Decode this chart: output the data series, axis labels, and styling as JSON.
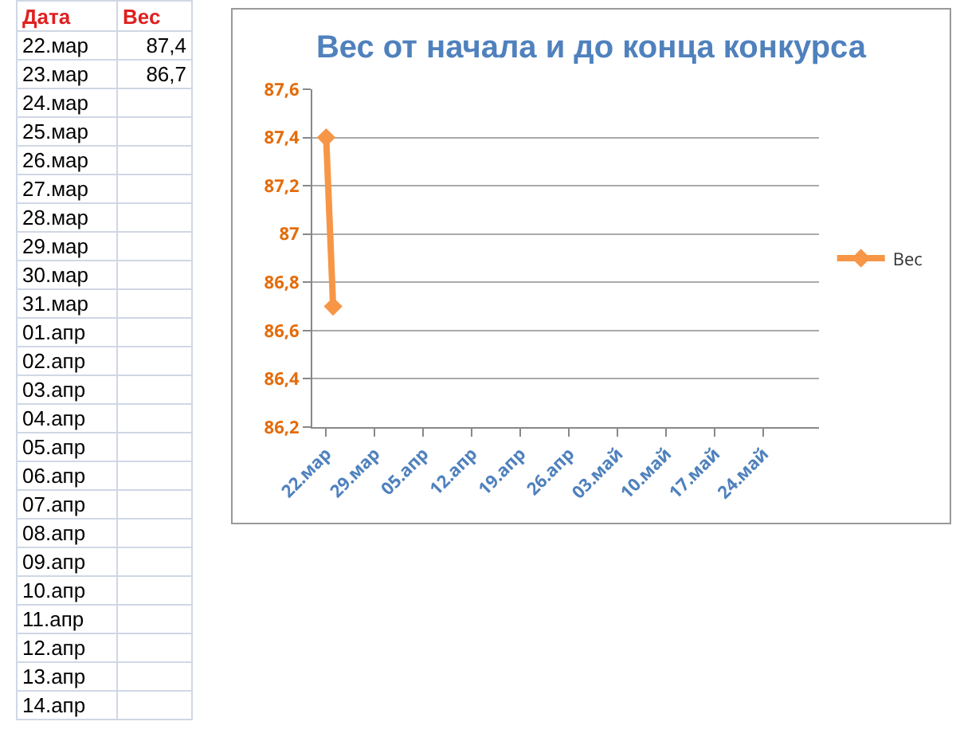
{
  "chart_data": {
    "type": "line",
    "title": "Вес от начала и до конца конкурса",
    "annotations": [
      "Дата",
      "22.мар",
      "23.мар",
      "24.мар",
      "25.мар",
      "26.мар",
      "27.мар",
      "28.мар",
      "29.мар",
      "30.мар",
      "31.мар",
      "01.апр",
      "02.апр",
      "03.апр",
      "04.апр",
      "05.апр",
      "06.апр",
      "07.апр",
      "08.апр",
      "09.апр",
      "10.апр",
      "11.апр",
      "12.апр",
      "13.апр",
      "14.апр",
      "87,4",
      "86,7"
    ],
    "x": [
      "--03-22",
      "--03-23"
    ],
    "series": [
      {
        "name": "Вес",
        "color": "#f79646",
        "values": [
          87.4,
          86.7
        ]
      }
    ],
    "xlim": [
      "--03-20",
      "--06-01"
    ],
    "xticks": [
      {
        "value": "--03-22",
        "label": "22.мар"
      },
      {
        "value": "--03-29",
        "label": "29.мар"
      },
      {
        "value": "--04-05",
        "label": "05.апр"
      },
      {
        "value": "--04-12",
        "label": "12.апр"
      },
      {
        "value": "--04-19",
        "label": "19.апр"
      },
      {
        "value": "--04-26",
        "label": "26.апр"
      },
      {
        "value": "--05-03",
        "label": "03.май"
      },
      {
        "value": "--05-10",
        "label": "10.май"
      },
      {
        "value": "--05-17",
        "label": "17.май"
      },
      {
        "value": "--05-24",
        "label": "24.май"
      }
    ],
    "ylim": [
      86.2,
      87.6
    ],
    "yticks": [
      {
        "value": 86.2,
        "label": "86,2"
      },
      {
        "value": 86.4,
        "label": "86,4"
      },
      {
        "value": 86.6,
        "label": "86,6"
      },
      {
        "value": 86.8,
        "label": "86,8"
      },
      87,
      {
        "value": 87.2,
        "label": "87,2"
      },
      {
        "value": 87.4,
        "label": "87,4"
      },
      {
        "value": 87.6,
        "label": "87,6"
      }
    ],
    "grid": "y",
    "legend": "right",
    "marker": "diamond",
    "line_style": "solid"
  }
}
